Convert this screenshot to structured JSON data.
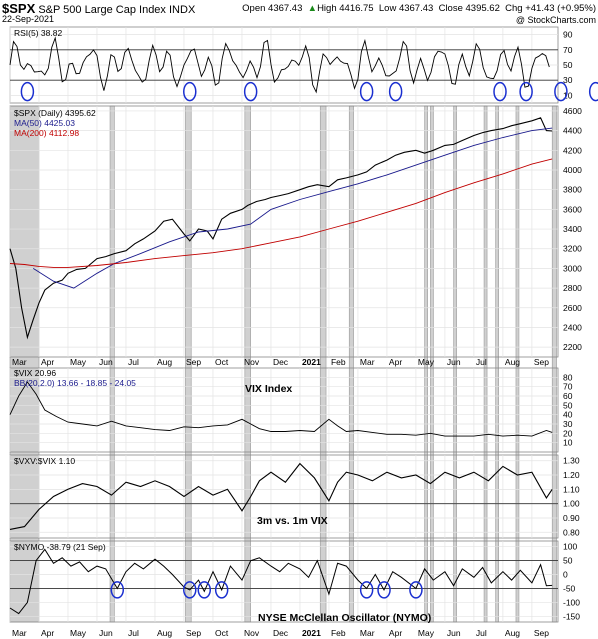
{
  "header": {
    "symbol": "$SPX",
    "name": "S&P 500 Large Cap Index",
    "exchange": "INDX",
    "date": "22-Sep-2021",
    "open_label": "Open",
    "open": "4367.43",
    "high_label": "High",
    "high": "4416.75",
    "low_label": "Low",
    "low": "4367.43",
    "close_label": "Close",
    "close": "4395.62",
    "chg_label": "Chg",
    "chg": "+41.43 (+0.95%)",
    "up_arrow": "▲",
    "brand": "@ StockCharts.com"
  },
  "chart_data": [
    {
      "type": "line",
      "name": "rsi",
      "legend": "RSI(5) 38.82",
      "ylim": [
        0,
        100
      ],
      "yticks": [
        10,
        30,
        50,
        70,
        90
      ],
      "reference_lines": [
        30,
        70
      ],
      "fill_above": 70,
      "fill_color": "#3a7a3a",
      "oversold_circles_x": [
        0.6,
        6.2,
        8.3,
        12.3,
        13.3,
        16.9,
        17.8,
        19.0,
        20.2
      ]
    },
    {
      "type": "line",
      "name": "spx",
      "legend": "$SPX (Daily) 4395.62",
      "ylim": [
        2100,
        4650
      ],
      "yticks": [
        2200,
        2400,
        2600,
        2800,
        3000,
        3200,
        3400,
        3600,
        3800,
        4000,
        4200,
        4400,
        4600
      ],
      "x_months": [
        "Mar",
        "Apr",
        "May",
        "Jun",
        "Jul",
        "Aug",
        "Sep",
        "Oct",
        "Nov",
        "Dec",
        "2021",
        "Feb",
        "Mar",
        "Apr",
        "May",
        "Jun",
        "Jul",
        "Aug",
        "Sep"
      ],
      "month_positions": [
        0,
        1,
        2,
        3,
        4,
        5,
        6,
        7,
        8,
        9,
        10,
        11,
        12,
        13,
        14,
        15,
        16,
        17,
        18
      ],
      "series": [
        {
          "name": "$SPX",
          "color": "#000000",
          "x": [
            0,
            0.2,
            0.4,
            0.6,
            0.8,
            1.0,
            1.2,
            1.5,
            1.8,
            2.0,
            2.3,
            2.6,
            3.0,
            3.3,
            3.6,
            4.0,
            4.3,
            4.6,
            5.0,
            5.3,
            5.6,
            6.0,
            6.2,
            6.5,
            6.8,
            7.0,
            7.3,
            7.6,
            8.0,
            8.2,
            8.5,
            8.8,
            9.0,
            9.3,
            9.6,
            10.0,
            10.3,
            10.6,
            11.0,
            11.3,
            11.6,
            12.0,
            12.3,
            12.6,
            13.0,
            13.3,
            13.6,
            14.0,
            14.3,
            14.6,
            15.0,
            15.3,
            15.6,
            16.0,
            16.3,
            16.6,
            17.0,
            17.3,
            17.6,
            18.0,
            18.3,
            18.5,
            18.7
          ],
          "values": [
            3200,
            3000,
            2600,
            2300,
            2480,
            2650,
            2780,
            2850,
            2880,
            2950,
            2990,
            3000,
            3100,
            3120,
            3150,
            3180,
            3250,
            3300,
            3380,
            3480,
            3500,
            3350,
            3280,
            3400,
            3380,
            3300,
            3500,
            3560,
            3600,
            3640,
            3680,
            3700,
            3720,
            3740,
            3760,
            3800,
            3830,
            3850,
            3830,
            3900,
            3920,
            3950,
            3980,
            4050,
            4100,
            4150,
            4180,
            4200,
            4170,
            4200,
            4250,
            4260,
            4300,
            4350,
            4380,
            4400,
            4420,
            4450,
            4470,
            4500,
            4530,
            4400,
            4395.62
          ]
        },
        {
          "name": "MA(50) 4425.03",
          "color": "#1a1a8c",
          "x": [
            0.8,
            1.5,
            2.2,
            3.0,
            3.6,
            4.5,
            5.5,
            6.5,
            7.5,
            8.3,
            9.0,
            10.0,
            11.0,
            12.0,
            13.0,
            14.0,
            15.0,
            16.0,
            17.0,
            18.0,
            18.7
          ],
          "values": [
            3000,
            2870,
            2800,
            2950,
            3050,
            3150,
            3270,
            3370,
            3400,
            3450,
            3600,
            3700,
            3780,
            3860,
            3950,
            4050,
            4150,
            4250,
            4330,
            4400,
            4425.03
          ]
        },
        {
          "name": "MA(200) 4112.98",
          "color": "#c00000",
          "x": [
            0,
            0.5,
            1.0,
            1.5,
            2.0,
            3.0,
            4.0,
            5.0,
            6.0,
            7.0,
            8.0,
            9.0,
            10.0,
            11.0,
            12.0,
            13.0,
            14.0,
            15.0,
            16.0,
            17.0,
            18.0,
            18.7
          ],
          "values": [
            3050,
            3040,
            3020,
            3010,
            3010,
            3030,
            3060,
            3100,
            3130,
            3160,
            3200,
            3260,
            3320,
            3400,
            3480,
            3570,
            3660,
            3770,
            3870,
            3960,
            4060,
            4112.98
          ]
        }
      ],
      "highlight_bands_x": [
        [
          0,
          1
        ],
        [
          3.45,
          3.6
        ],
        [
          6.05,
          6.25
        ],
        [
          8.1,
          8.3
        ],
        [
          10.7,
          10.9
        ],
        [
          11.7,
          11.85
        ],
        [
          14.3,
          14.4
        ],
        [
          14.5,
          14.6
        ],
        [
          15.3,
          15.4
        ],
        [
          16.35,
          16.45
        ],
        [
          16.75,
          16.85
        ],
        [
          17.45,
          17.55
        ],
        [
          18.7,
          18.85
        ]
      ]
    },
    {
      "type": "line",
      "name": "vix",
      "legend": "$VIX 20.96",
      "bb_legend": "BB(20,2.0) 13.66 - 18.85 - 24.05",
      "annotation": "VIX Index",
      "ylim": [
        0,
        90
      ],
      "yticks": [
        10,
        20,
        30,
        40,
        50,
        60,
        70,
        80
      ],
      "series": [
        {
          "name": "$VIX",
          "color": "#000000",
          "x": [
            0,
            0.3,
            0.6,
            0.9,
            1.2,
            1.6,
            2.0,
            2.5,
            3.0,
            3.5,
            4.0,
            4.5,
            5.0,
            5.5,
            6.0,
            6.5,
            7.0,
            7.5,
            8.0,
            8.3,
            8.6,
            9.0,
            9.5,
            10.0,
            10.5,
            11.0,
            11.3,
            11.6,
            12.0,
            12.5,
            13.0,
            13.5,
            14.0,
            14.5,
            15.0,
            15.5,
            16.0,
            16.5,
            17.0,
            17.5,
            18.0,
            18.5,
            18.7
          ],
          "values": [
            40,
            60,
            75,
            62,
            45,
            38,
            32,
            30,
            28,
            33,
            28,
            26,
            24,
            23,
            27,
            26,
            28,
            29,
            35,
            30,
            25,
            22,
            22,
            23,
            22,
            35,
            28,
            22,
            23,
            21,
            19,
            19,
            18,
            20,
            17,
            17,
            17,
            19,
            17,
            18,
            17,
            23,
            20.96
          ]
        }
      ]
    },
    {
      "type": "line",
      "name": "vxv_ratio",
      "legend": "$VXV:$VIX 1.10",
      "annotation": "3m vs. 1m VIX",
      "ylim": [
        0.76,
        1.34
      ],
      "yticks": [
        0.8,
        0.9,
        1.0,
        1.1,
        1.2,
        1.3
      ],
      "reference_lines": [
        1.0
      ],
      "series": [
        {
          "name": "$VXV:$VIX",
          "color": "#000000",
          "x": [
            0,
            0.5,
            1.0,
            1.5,
            2.0,
            2.5,
            3.0,
            3.5,
            4.0,
            4.5,
            5.0,
            5.5,
            6.0,
            6.5,
            7.0,
            7.5,
            8.0,
            8.3,
            8.6,
            9.0,
            9.5,
            10.0,
            10.5,
            11.0,
            11.3,
            11.6,
            12.0,
            12.5,
            13.0,
            13.5,
            14.0,
            14.5,
            15.0,
            15.5,
            16.0,
            16.5,
            17.0,
            17.5,
            18.0,
            18.5,
            18.7
          ],
          "values": [
            0.82,
            0.84,
            0.96,
            1.05,
            1.1,
            1.14,
            1.12,
            1.06,
            1.15,
            1.12,
            1.16,
            1.12,
            1.05,
            1.12,
            1.06,
            1.1,
            0.95,
            1.05,
            1.16,
            1.22,
            1.15,
            1.28,
            1.18,
            1.02,
            1.15,
            1.22,
            1.2,
            1.16,
            1.22,
            1.18,
            1.2,
            1.14,
            1.22,
            1.18,
            1.22,
            1.16,
            1.26,
            1.2,
            1.22,
            1.04,
            1.1
          ]
        }
      ]
    },
    {
      "type": "line",
      "name": "nymo",
      "legend": "$NYMO -38.79 (21 Sep)",
      "annotation": "NYSE McClellan Oscillator (NYMO)",
      "ylim": [
        -170,
        120
      ],
      "yticks": [
        -150,
        -100,
        -50,
        0,
        50,
        100
      ],
      "reference_lines": [
        -50,
        50
      ],
      "oversold_circles_x": [
        3.7,
        6.2,
        6.7,
        7.3,
        12.3,
        12.9,
        14.0
      ],
      "series": [
        {
          "name": "$NYMO",
          "color": "#000000",
          "x": [
            0,
            0.3,
            0.6,
            0.9,
            1.2,
            1.5,
            1.8,
            2.1,
            2.4,
            2.7,
            3.0,
            3.3,
            3.7,
            4.0,
            4.3,
            4.6,
            5.0,
            5.3,
            5.6,
            6.0,
            6.2,
            6.5,
            6.7,
            7.0,
            7.3,
            7.6,
            8.0,
            8.3,
            8.6,
            9.0,
            9.3,
            9.6,
            10.0,
            10.3,
            10.6,
            11.0,
            11.3,
            11.6,
            12.0,
            12.3,
            12.6,
            12.9,
            13.2,
            13.5,
            14.0,
            14.3,
            14.6,
            15.0,
            15.3,
            15.6,
            16.0,
            16.3,
            16.6,
            17.0,
            17.3,
            17.6,
            18.0,
            18.3,
            18.5,
            18.7
          ],
          "values": [
            -120,
            -140,
            -100,
            50,
            90,
            40,
            60,
            30,
            45,
            10,
            30,
            20,
            -50,
            10,
            40,
            20,
            55,
            30,
            0,
            -45,
            -55,
            -20,
            -60,
            10,
            -55,
            30,
            -20,
            50,
            60,
            30,
            10,
            40,
            20,
            -10,
            50,
            -70,
            40,
            30,
            -20,
            -50,
            0,
            -55,
            10,
            -10,
            -50,
            20,
            -20,
            10,
            -40,
            20,
            -10,
            25,
            -30,
            10,
            -20,
            15,
            -30,
            35,
            -40,
            -38.79
          ]
        }
      ]
    }
  ]
}
